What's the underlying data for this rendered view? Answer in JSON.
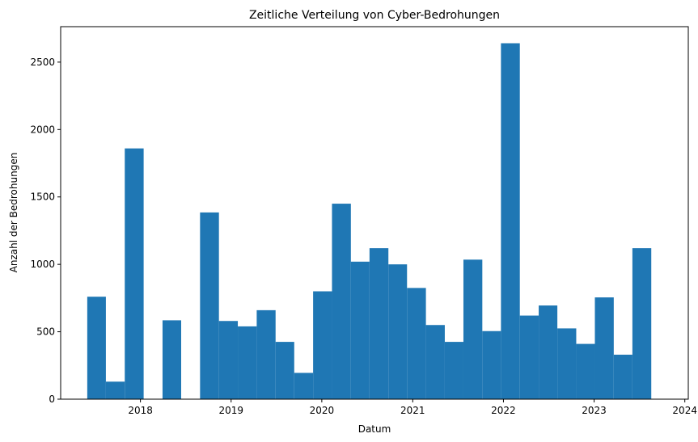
{
  "chart_data": {
    "type": "bar",
    "title": "Zeitliche Verteilung von Cyber-Bedrohungen",
    "xlabel": "Datum",
    "ylabel": "Anzahl der Bedrohungen",
    "bar_color": "#1f77b4",
    "x_unit": "date",
    "xlim": [
      "2017-02-14",
      "2024-01-15"
    ],
    "ylim": [
      0,
      2763
    ],
    "grid": false,
    "x_ticks": [
      {
        "date": "2018-01-01",
        "label": "2018"
      },
      {
        "date": "2019-01-01",
        "label": "2019"
      },
      {
        "date": "2020-01-01",
        "label": "2020"
      },
      {
        "date": "2021-01-01",
        "label": "2021"
      },
      {
        "date": "2022-01-01",
        "label": "2022"
      },
      {
        "date": "2023-01-01",
        "label": "2023"
      },
      {
        "date": "2024-01-01",
        "label": "2024"
      }
    ],
    "y_ticks": [
      {
        "value": 0,
        "label": "0"
      },
      {
        "value": 500,
        "label": "500"
      },
      {
        "value": 1000,
        "label": "1000"
      },
      {
        "value": 1500,
        "label": "1500"
      },
      {
        "value": 2000,
        "label": "2000"
      },
      {
        "value": 2500,
        "label": "2500"
      }
    ],
    "bins": [
      {
        "start": "2017-06-01",
        "end": "2017-08-15",
        "value": 760
      },
      {
        "start": "2017-08-15",
        "end": "2017-10-30",
        "value": 130
      },
      {
        "start": "2017-10-30",
        "end": "2018-01-14",
        "value": 1860
      },
      {
        "start": "2018-01-14",
        "end": "2018-03-31",
        "value": 0
      },
      {
        "start": "2018-03-31",
        "end": "2018-06-14",
        "value": 585
      },
      {
        "start": "2018-06-14",
        "end": "2018-08-29",
        "value": 0
      },
      {
        "start": "2018-08-29",
        "end": "2018-11-13",
        "value": 1385
      },
      {
        "start": "2018-11-13",
        "end": "2019-01-28",
        "value": 580
      },
      {
        "start": "2019-01-28",
        "end": "2019-04-14",
        "value": 540
      },
      {
        "start": "2019-04-14",
        "end": "2019-06-29",
        "value": 660
      },
      {
        "start": "2019-06-29",
        "end": "2019-09-12",
        "value": 425
      },
      {
        "start": "2019-09-12",
        "end": "2019-11-27",
        "value": 195
      },
      {
        "start": "2019-11-27",
        "end": "2020-02-11",
        "value": 800
      },
      {
        "start": "2020-02-11",
        "end": "2020-04-27",
        "value": 1450
      },
      {
        "start": "2020-04-27",
        "end": "2020-07-11",
        "value": 1020
      },
      {
        "start": "2020-07-11",
        "end": "2020-09-25",
        "value": 1120
      },
      {
        "start": "2020-09-25",
        "end": "2020-12-09",
        "value": 1000
      },
      {
        "start": "2020-12-09",
        "end": "2021-02-23",
        "value": 825
      },
      {
        "start": "2021-02-23",
        "end": "2021-05-10",
        "value": 550
      },
      {
        "start": "2021-05-10",
        "end": "2021-07-24",
        "value": 425
      },
      {
        "start": "2021-07-24",
        "end": "2021-10-08",
        "value": 1035
      },
      {
        "start": "2021-10-08",
        "end": "2021-12-22",
        "value": 505
      },
      {
        "start": "2021-12-22",
        "end": "2022-03-08",
        "value": 2640
      },
      {
        "start": "2022-03-08",
        "end": "2022-05-23",
        "value": 620
      },
      {
        "start": "2022-05-23",
        "end": "2022-08-06",
        "value": 695
      },
      {
        "start": "2022-08-06",
        "end": "2022-10-21",
        "value": 525
      },
      {
        "start": "2022-10-21",
        "end": "2023-01-04",
        "value": 410
      },
      {
        "start": "2023-01-04",
        "end": "2023-03-21",
        "value": 755
      },
      {
        "start": "2023-03-21",
        "end": "2023-06-04",
        "value": 330
      },
      {
        "start": "2023-06-04",
        "end": "2023-08-19",
        "value": 1120
      }
    ]
  }
}
